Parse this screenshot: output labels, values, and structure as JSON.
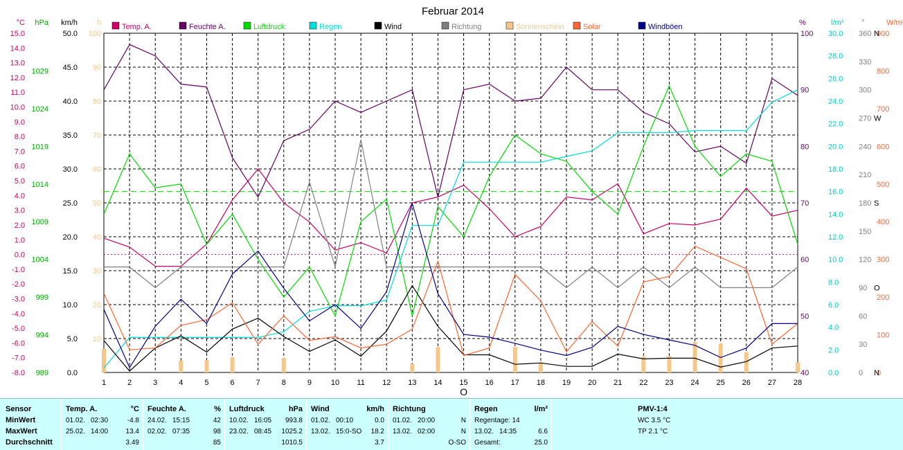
{
  "chart_data": {
    "type": "line",
    "title": "Februar 2014",
    "x": [
      1,
      2,
      3,
      4,
      5,
      6,
      7,
      8,
      9,
      10,
      11,
      12,
      13,
      14,
      15,
      16,
      17,
      18,
      19,
      20,
      21,
      22,
      23,
      24,
      25,
      26,
      27,
      28
    ],
    "x_ticks": [
      "1",
      "2",
      "3",
      "4",
      "5",
      "6",
      "7",
      "8",
      "9",
      "10",
      "11",
      "12",
      "13",
      "14",
      "15",
      "16",
      "17",
      "18",
      "19",
      "20",
      "21",
      "22",
      "23",
      "24",
      "25",
      "26",
      "27",
      "28"
    ],
    "x_marker": "O",
    "axes": {
      "temp": {
        "unit": "°C",
        "range": [
          -8,
          15
        ],
        "ticks": [
          "-8.0",
          "-7.0",
          "-6.0",
          "-5.0",
          "-4.0",
          "-3.0",
          "-2.0",
          "-1.0",
          "0.0",
          "1.0",
          "2.0",
          "3.0",
          "4.0",
          "5.0",
          "6.0",
          "7.0",
          "8.0",
          "9.0",
          "10.0",
          "11.0",
          "12.0",
          "13.0",
          "14.0",
          "15.0"
        ]
      },
      "pressure": {
        "unit": "hPa",
        "range": [
          989,
          1034
        ],
        "ticks": [
          "989",
          "994",
          "999",
          "1004",
          "1009",
          "1014",
          "1019",
          "1024",
          "1029"
        ]
      },
      "wind": {
        "unit": "km/h",
        "range": [
          0,
          50
        ],
        "ticks": [
          "0.0",
          "5.0",
          "10.0",
          "15.0",
          "20.0",
          "25.0",
          "30.0",
          "35.0",
          "40.0",
          "45.0",
          "50.0"
        ]
      },
      "sun": {
        "unit": "h",
        "range": [
          0,
          100
        ],
        "ticks": [
          "10",
          "20",
          "30",
          "40",
          "50",
          "60",
          "70",
          "80",
          "90",
          "100"
        ]
      },
      "humidity": {
        "unit": "%",
        "range": [
          40,
          100
        ],
        "ticks": [
          "40",
          "50",
          "60",
          "70",
          "80",
          "90",
          "100"
        ]
      },
      "rain": {
        "unit": "l/m²",
        "range": [
          0,
          30
        ],
        "ticks": [
          "0.0",
          "2.0",
          "4.0",
          "6.0",
          "8.0",
          "10.0",
          "12.0",
          "14.0",
          "16.0",
          "18.0",
          "20.0",
          "22.0",
          "24.0",
          "26.0",
          "28.0",
          "30.0"
        ]
      },
      "direction": {
        "unit": "°",
        "range": [
          0,
          360
        ],
        "ticks": [
          "0",
          "30",
          "60",
          "90",
          "120",
          "150",
          "180",
          "210",
          "240",
          "270",
          "300",
          "330",
          "360"
        ],
        "compass": {
          "0": "N",
          "90": "O",
          "180": "S",
          "270": "W",
          "360": "N"
        }
      },
      "solar": {
        "unit": "W/m²",
        "range": [
          0,
          900
        ],
        "ticks": [
          "0",
          "100",
          "200",
          "300",
          "400",
          "500",
          "600",
          "700",
          "800",
          "900"
        ]
      }
    },
    "reference_lines": [
      {
        "series": "Temp. A.",
        "value": 0.0
      },
      {
        "series": "Luftdruck",
        "value": 1013.0
      }
    ],
    "series": [
      {
        "name": "Temp. A.",
        "axis": "temp",
        "color": "#cc0066",
        "values": [
          1.1,
          0.5,
          -0.8,
          -0.8,
          0.7,
          3.7,
          5.8,
          3.5,
          2.2,
          0.3,
          0.8,
          0.1,
          3.5,
          3.9,
          4.7,
          3.1,
          1.2,
          1.9,
          3.9,
          3.7,
          4.8,
          1.4,
          2.1,
          2.0,
          2.4,
          4.5,
          2.6,
          3.0
        ]
      },
      {
        "name": "Feuchte A.",
        "axis": "humidity",
        "color": "#660066",
        "values": [
          90,
          98,
          96,
          91,
          90.5,
          78,
          71,
          81,
          83,
          88,
          86,
          88,
          90,
          71,
          90,
          91,
          88,
          88.5,
          94,
          90,
          90,
          86,
          84,
          79,
          80,
          77,
          92,
          89
        ]
      },
      {
        "name": "Luftdruck",
        "axis": "pressure",
        "color": "#00dd00",
        "values": [
          1010,
          1018,
          1013.5,
          1014,
          1006,
          1010,
          1004,
          999,
          1003,
          996.5,
          1009,
          1012,
          996.5,
          1011,
          1007,
          1015,
          1020.5,
          1018,
          1017,
          1013,
          1010,
          1019,
          1027,
          1019,
          1015,
          1018,
          1017,
          1006
        ]
      },
      {
        "name": "Regen",
        "axis": "rain",
        "color": "#00dddd",
        "values": [
          0.4,
          3.1,
          3.1,
          3.1,
          3.1,
          3.1,
          3.1,
          3.6,
          5.4,
          5.9,
          5.9,
          6.4,
          13.0,
          13.0,
          18.6,
          18.6,
          18.6,
          18.6,
          19.1,
          19.6,
          21.2,
          21.2,
          21.2,
          21.4,
          21.4,
          21.4,
          23.9,
          25.0
        ]
      },
      {
        "name": "Wind",
        "axis": "wind",
        "color": "#000000",
        "values": [
          4.7,
          0.2,
          3.6,
          5.4,
          3.0,
          6.4,
          8.0,
          5.3,
          3.1,
          4.8,
          2.4,
          6.1,
          12.8,
          6.8,
          2.6,
          2.6,
          1.2,
          1.4,
          0.9,
          0.9,
          2.7,
          2.0,
          2.1,
          2.1,
          0.8,
          1.6,
          3.6,
          3.9
        ]
      },
      {
        "name": "Richtung",
        "axis": "direction",
        "color": "#808080",
        "values": [
          112,
          112,
          90,
          112,
          112,
          112,
          112,
          112,
          202,
          112,
          247,
          112,
          112,
          112,
          112,
          112,
          112,
          112,
          90,
          112,
          90,
          112,
          90,
          112,
          90,
          90,
          90,
          112
        ]
      },
      {
        "name": "Sonnenschein",
        "axis": "sun",
        "color": "#f5c88a",
        "kind": "bar",
        "values": [
          7,
          0,
          0,
          3.5,
          3.7,
          4.5,
          0,
          4.2,
          0,
          0,
          0,
          0,
          2.6,
          7.5,
          0,
          0,
          7.5,
          3,
          0,
          0,
          0,
          4.7,
          4.8,
          9,
          8.5,
          6,
          0,
          3
        ]
      },
      {
        "name": "Solar",
        "axis": "solar",
        "color": "#ff6633",
        "values": [
          210,
          60,
          65,
          125,
          140,
          185,
          75,
          150,
          85,
          95,
          65,
          75,
          115,
          295,
          45,
          65,
          260,
          190,
          55,
          135,
          70,
          240,
          255,
          335,
          305,
          275,
          75,
          130
        ]
      },
      {
        "name": "Windböen",
        "axis": "wind",
        "color": "#000088",
        "values": [
          9.3,
          0.7,
          6.8,
          10.8,
          7.2,
          14.5,
          17.9,
          12.4,
          7.6,
          10.0,
          6.5,
          11.9,
          24.9,
          11.6,
          5.6,
          5.2,
          4.3,
          3.3,
          2.5,
          3.7,
          6.8,
          5.6,
          4.8,
          4.0,
          2.2,
          3.6,
          7.2,
          7.2
        ]
      }
    ]
  },
  "stats": {
    "sensor": {
      "header": "Sensor",
      "rows": [
        "MinWert",
        "MaxWert",
        "Durchschnitt"
      ]
    },
    "temp": {
      "header": "Temp. A.",
      "unit": "°C",
      "min": {
        "date": "01.02.",
        "time": "02:30",
        "value": "-4.8"
      },
      "max": {
        "date": "25.02.",
        "time": "14:00",
        "value": "13.4"
      },
      "avg": "3.49"
    },
    "humidity": {
      "header": "Feuchte A.",
      "unit": "%",
      "min": {
        "date": "24.02.",
        "time": "15:15",
        "value": "42"
      },
      "max": {
        "date": "02.02.",
        "time": "07:35",
        "value": "98"
      },
      "avg": "85"
    },
    "pressure": {
      "header": "Luftdruck",
      "unit": "hPa",
      "min": {
        "date": "10.02.",
        "time": "16:05",
        "value": "993.8"
      },
      "max": {
        "date": "23.02.",
        "time": "08:45",
        "value": "1025.2"
      },
      "avg": "1010.5"
    },
    "wind": {
      "header": "Wind",
      "unit": "km/h",
      "min": {
        "date": "01.02.",
        "time": "00:10",
        "value": "0.0"
      },
      "max": {
        "date": "13.02.",
        "time": "15:0-SO",
        "value": "18.2"
      },
      "avg": "3.7"
    },
    "direction": {
      "header": "Richtung",
      "min": {
        "date": "01.02.",
        "time": "20:00",
        "value": "N"
      },
      "max": {
        "date": "13.02.",
        "time": "02:00",
        "value": "N"
      },
      "avg": "O-SO"
    },
    "rain": {
      "header": "Regen",
      "unit": "l/m²",
      "row1": "Regentage: 14",
      "row2": {
        "date": "13.02.",
        "time": "14:35",
        "value": "6.6"
      },
      "row3": {
        "label": "Gesamt:",
        "value": "25.0"
      }
    },
    "pmv": {
      "header": "PMV-1:4",
      "wc": "WC 3.5 °C",
      "tp": "TP 2.1 °C"
    }
  }
}
